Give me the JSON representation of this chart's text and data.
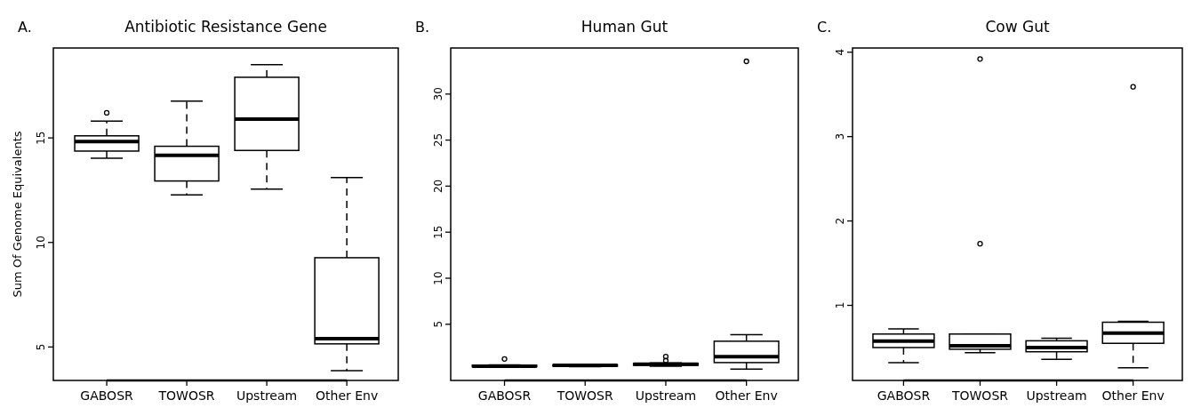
{
  "chart_data": [
    {
      "type": "box",
      "title": "Antibiotic Resistance Gene",
      "ylabel": "Sum Of Genome Equivalents",
      "annotations": [
        "A."
      ],
      "categories": [
        "GABOSR",
        "TOWOSR",
        "Upstream",
        "Other Env"
      ],
      "line_style": "dashed",
      "marker": "circle",
      "ylim": [
        3.4,
        19.3
      ],
      "yticks": [
        5,
        10,
        15
      ],
      "boxes": [
        {
          "low": 14.03,
          "q1": 14.37,
          "median": 14.83,
          "q3": 15.1,
          "high": 15.8,
          "outliers": [
            16.2
          ]
        },
        {
          "low": 12.27,
          "q1": 12.94,
          "median": 14.17,
          "q3": 14.6,
          "high": 16.76
        },
        {
          "low": 12.55,
          "q1": 14.4,
          "median": 15.9,
          "q3": 17.9,
          "high": 18.5
        },
        {
          "low": 3.87,
          "q1": 5.15,
          "median": 5.4,
          "q3": 9.27,
          "high": 13.1
        }
      ]
    },
    {
      "type": "box",
      "title": "Human Gut",
      "annotations": [
        "B."
      ],
      "categories": [
        "GABOSR",
        "TOWOSR",
        "Upstream",
        "Other Env"
      ],
      "line_style": "dashed",
      "marker": "circle",
      "ylim": [
        -1.1,
        35
      ],
      "yticks": [
        5,
        10,
        15,
        20,
        25,
        30
      ],
      "boxes": [
        {
          "low": 0.35,
          "q1": 0.4,
          "median": 0.45,
          "q3": 0.55,
          "high": 0.6,
          "outliers": [
            1.23
          ]
        },
        {
          "low": 0.4,
          "q1": 0.45,
          "median": 0.55,
          "q3": 0.6,
          "high": 0.65
        },
        {
          "low": 0.45,
          "q1": 0.55,
          "median": 0.65,
          "q3": 0.75,
          "high": 0.8,
          "outliers": [
            1.05,
            1.5
          ]
        },
        {
          "low": 0.13,
          "q1": 0.84,
          "median": 1.48,
          "q3": 3.16,
          "high": 3.87,
          "outliers": [
            33.55
          ]
        }
      ]
    },
    {
      "type": "box",
      "title": "Cow Gut",
      "annotations": [
        "C."
      ],
      "categories": [
        "GABOSR",
        "TOWOSR",
        "Upstream",
        "Other Env"
      ],
      "line_style": "dashed",
      "marker": "circle",
      "ylim": [
        0.11,
        4.05
      ],
      "yticks": [
        1,
        2,
        3,
        4
      ],
      "boxes": [
        {
          "low": 0.32,
          "q1": 0.5,
          "median": 0.575,
          "q3": 0.66,
          "high": 0.72
        },
        {
          "low": 0.44,
          "q1": 0.48,
          "median": 0.52,
          "q3": 0.66,
          "high": 0.66,
          "outliers": [
            1.73,
            3.92
          ]
        },
        {
          "low": 0.36,
          "q1": 0.45,
          "median": 0.5,
          "q3": 0.58,
          "high": 0.61
        },
        {
          "low": 0.26,
          "q1": 0.55,
          "median": 0.67,
          "q3": 0.8,
          "high": 0.81,
          "outliers": [
            3.59
          ]
        }
      ]
    }
  ]
}
